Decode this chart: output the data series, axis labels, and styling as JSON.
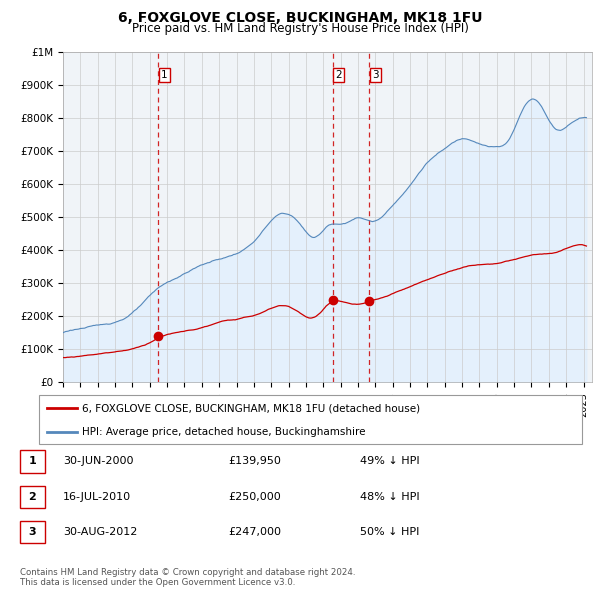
{
  "title": "6, FOXGLOVE CLOSE, BUCKINGHAM, MK18 1FU",
  "subtitle": "Price paid vs. HM Land Registry's House Price Index (HPI)",
  "legend_red": "6, FOXGLOVE CLOSE, BUCKINGHAM, MK18 1FU (detached house)",
  "legend_blue": "HPI: Average price, detached house, Buckinghamshire",
  "transactions": [
    {
      "label": "1",
      "date_year": 2000.5,
      "price": 139950
    },
    {
      "label": "2",
      "date_year": 2010.54,
      "price": 250000
    },
    {
      "label": "3",
      "date_year": 2012.66,
      "price": 247000
    }
  ],
  "table_rows": [
    [
      "1",
      "30-JUN-2000",
      "£139,950",
      "49% ↓ HPI"
    ],
    [
      "2",
      "16-JUL-2010",
      "£250,000",
      "48% ↓ HPI"
    ],
    [
      "3",
      "30-AUG-2012",
      "£247,000",
      "50% ↓ HPI"
    ]
  ],
  "footer": [
    "Contains HM Land Registry data © Crown copyright and database right 2024.",
    "This data is licensed under the Open Government Licence v3.0."
  ],
  "red_color": "#cc0000",
  "blue_color": "#5588bb",
  "blue_fill_color": "#ddeeff",
  "dashed_red_color": "#cc0000",
  "background_color": "#ffffff",
  "grid_color": "#cccccc",
  "ylim": [
    0,
    1000000
  ],
  "yticks": [
    0,
    100000,
    200000,
    300000,
    400000,
    500000,
    600000,
    700000,
    800000,
    900000,
    1000000
  ],
  "ytick_labels": [
    "£0",
    "£100K",
    "£200K",
    "£300K",
    "£400K",
    "£500K",
    "£600K",
    "£700K",
    "£800K",
    "£900K",
    "£1M"
  ],
  "xmin": 1995.0,
  "xmax": 2025.5
}
